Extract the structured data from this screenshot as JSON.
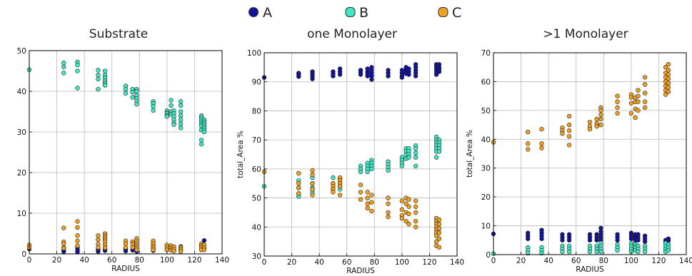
{
  "legend": {
    "entries": [
      {
        "label": "A",
        "color": "#11119a"
      },
      {
        "label": "B",
        "color": "#3ee8c2"
      },
      {
        "label": "C",
        "color": "#f0a020"
      }
    ]
  },
  "chart_data": [
    {
      "type": "scatter",
      "title": "Substrate",
      "xlabel": "RADIUS",
      "ylabel": "",
      "xlim": [
        0,
        140
      ],
      "ylim": [
        0,
        50
      ],
      "xticks": [
        "0",
        "20",
        "40",
        "60",
        "80",
        "100",
        "120",
        "140"
      ],
      "yticks": [
        "0",
        "10",
        "20",
        "30",
        "40",
        "50"
      ],
      "grid": true,
      "series": [
        {
          "name": "A",
          "color": "#11119a",
          "x": [
            0,
            25,
            25,
            25,
            35,
            35,
            35,
            50,
            50,
            55,
            55,
            70,
            70,
            75,
            78,
            78,
            90,
            90,
            100,
            100,
            103,
            105,
            110,
            110,
            125,
            125,
            125,
            127,
            127
          ],
          "y": [
            1.2,
            0.6,
            1.0,
            1.5,
            0.5,
            1.0,
            1.6,
            0.6,
            1.1,
            0.8,
            1.3,
            0.7,
            1.2,
            0.9,
            1.3,
            0.6,
            0.8,
            1.2,
            1.0,
            1.6,
            1.3,
            0.9,
            1.2,
            1.8,
            1.0,
            1.8,
            2.4,
            1.4,
            3.3
          ]
        },
        {
          "name": "B",
          "color": "#3ee8c2",
          "x": [
            0,
            25,
            25,
            25,
            35,
            35,
            35,
            35,
            50,
            50,
            50,
            50,
            55,
            55,
            55,
            55,
            55,
            55,
            70,
            70,
            70,
            75,
            75,
            75,
            78,
            78,
            78,
            78,
            78,
            78,
            90,
            90,
            90,
            90,
            100,
            100,
            100,
            100,
            100,
            103,
            103,
            103,
            103,
            105,
            105,
            105,
            105,
            105,
            105,
            110,
            110,
            110,
            110,
            110,
            110,
            110,
            125,
            125,
            125,
            125,
            125,
            125,
            125,
            125,
            125,
            127,
            127,
            127,
            127,
            127,
            127,
            127
          ],
          "y": [
            45.3,
            47.0,
            46.0,
            44.5,
            47.2,
            46.5,
            45.0,
            40.8,
            45.2,
            44.0,
            43.0,
            40.5,
            45.0,
            44.0,
            43.3,
            42.6,
            42.0,
            41.5,
            41.3,
            40.5,
            39.5,
            40.5,
            39.8,
            38.5,
            40.5,
            40.0,
            39.0,
            38.2,
            37.5,
            36.8,
            37.5,
            37.0,
            36.3,
            35.3,
            35.2,
            34.8,
            34.5,
            34.0,
            33.8,
            37.8,
            36.5,
            35.0,
            34.3,
            35.2,
            34.5,
            33.8,
            33.0,
            32.2,
            31.8,
            37.5,
            36.5,
            35.0,
            34.0,
            33.0,
            32.0,
            31.0,
            34.0,
            33.5,
            33.0,
            32.5,
            32.0,
            31.5,
            30.5,
            28.0,
            27.0,
            33.0,
            32.5,
            32.0,
            31.5,
            31.0,
            30.5,
            30.0
          ]
        },
        {
          "name": "C",
          "color": "#f0a020",
          "x": [
            0,
            0,
            25,
            25,
            25,
            25,
            35,
            35,
            35,
            35,
            35,
            50,
            50,
            50,
            50,
            55,
            55,
            55,
            55,
            55,
            55,
            55,
            70,
            70,
            70,
            75,
            75,
            75,
            78,
            78,
            78,
            78,
            78,
            78,
            90,
            90,
            90,
            90,
            90,
            100,
            100,
            100,
            103,
            103,
            103,
            105,
            105,
            105,
            110,
            110,
            110,
            125,
            125,
            125,
            125,
            127,
            127,
            127
          ],
          "y": [
            2.2,
            1.5,
            6.4,
            3.0,
            2.5,
            1.4,
            8.0,
            6.5,
            4.5,
            3.2,
            2.0,
            4.5,
            3.5,
            2.4,
            1.6,
            5.0,
            4.5,
            4.0,
            3.5,
            3.0,
            2.2,
            1.5,
            3.2,
            2.5,
            1.6,
            3.0,
            2.4,
            1.6,
            3.8,
            3.2,
            2.6,
            2.0,
            1.5,
            1.0,
            3.2,
            2.6,
            2.0,
            1.5,
            1.0,
            2.2,
            1.6,
            1.0,
            2.0,
            1.4,
            0.9,
            1.8,
            1.2,
            0.7,
            1.6,
            1.1,
            0.6,
            2.5,
            2.0,
            1.5,
            1.0,
            2.2,
            1.6,
            1.0
          ]
        }
      ]
    },
    {
      "type": "scatter",
      "title": "one Monolayer",
      "xlabel": "RADIUS",
      "ylabel": "total_Area %",
      "xlim": [
        0,
        140
      ],
      "ylim": [
        30,
        100
      ],
      "xticks": [
        "0",
        "20",
        "40",
        "60",
        "80",
        "100",
        "120",
        "140"
      ],
      "yticks": [
        "30",
        "40",
        "50",
        "60",
        "70",
        "80",
        "90",
        "100"
      ],
      "grid": true,
      "series": [
        {
          "name": "A",
          "color": "#11119a",
          "x": [
            0,
            25,
            25,
            25,
            35,
            35,
            35,
            35,
            50,
            50,
            50,
            55,
            55,
            55,
            70,
            70,
            70,
            75,
            75,
            75,
            75,
            78,
            78,
            78,
            78,
            78,
            90,
            90,
            90,
            100,
            100,
            100,
            100,
            103,
            103,
            103,
            103,
            105,
            105,
            105,
            110,
            110,
            110,
            110,
            110,
            125,
            125,
            125,
            125,
            125,
            127,
            127,
            127,
            127
          ],
          "y": [
            91.5,
            93.0,
            92.5,
            91.8,
            93.5,
            92.8,
            92.0,
            91.0,
            93.5,
            92.8,
            92.0,
            94.5,
            93.5,
            92.5,
            94.0,
            93.3,
            92.5,
            94.5,
            93.5,
            92.8,
            92.0,
            95.0,
            94.0,
            93.0,
            92.0,
            90.8,
            94.0,
            93.0,
            92.0,
            94.0,
            93.0,
            92.0,
            91.5,
            95.0,
            94.3,
            93.5,
            92.8,
            94.5,
            93.5,
            92.5,
            96.0,
            95.0,
            94.0,
            93.0,
            92.0,
            96.0,
            95.3,
            94.5,
            93.5,
            92.5,
            96.0,
            95.0,
            94.3,
            93.5
          ]
        },
        {
          "name": "B",
          "color": "#3ee8c2",
          "x": [
            0,
            25,
            25,
            25,
            25,
            35,
            35,
            35,
            35,
            50,
            50,
            50,
            55,
            55,
            55,
            55,
            70,
            70,
            70,
            75,
            75,
            75,
            75,
            78,
            78,
            78,
            78,
            90,
            90,
            90,
            90,
            100,
            100,
            100,
            100,
            103,
            103,
            103,
            103,
            105,
            105,
            105,
            105,
            110,
            110,
            110,
            110,
            110,
            125,
            125,
            125,
            125,
            125,
            125,
            125,
            127,
            127,
            127,
            127,
            127
          ],
          "y": [
            54.0,
            56.0,
            53.5,
            51.5,
            50.5,
            57.0,
            55.0,
            53.5,
            52.0,
            57.0,
            55.0,
            53.0,
            56.5,
            55.0,
            54.0,
            53.0,
            61.0,
            60.0,
            59.0,
            62.0,
            61.0,
            60.0,
            59.0,
            63.0,
            62.0,
            61.0,
            60.0,
            62.5,
            61.5,
            60.5,
            59.5,
            64.0,
            63.0,
            62.0,
            61.0,
            67.0,
            66.0,
            65.0,
            63.5,
            67.0,
            66.0,
            65.0,
            64.0,
            68.0,
            67.0,
            65.5,
            64.0,
            61.0,
            71.0,
            70.0,
            69.0,
            68.0,
            67.0,
            66.0,
            64.0,
            70.0,
            69.0,
            68.0,
            67.0,
            66.0
          ]
        },
        {
          "name": "C",
          "color": "#f0a020",
          "x": [
            0,
            25,
            25,
            25,
            25,
            35,
            35,
            35,
            35,
            35,
            50,
            50,
            50,
            50,
            55,
            55,
            55,
            55,
            55,
            70,
            70,
            70,
            75,
            75,
            75,
            75,
            78,
            78,
            78,
            90,
            90,
            90,
            90,
            100,
            100,
            100,
            100,
            103,
            103,
            103,
            103,
            105,
            105,
            105,
            105,
            110,
            110,
            110,
            110,
            110,
            125,
            125,
            125,
            125,
            125,
            125,
            125,
            125,
            125,
            127,
            127,
            127,
            127,
            127,
            127
          ],
          "y": [
            59.0,
            58.5,
            55.0,
            53.5,
            51.5,
            59.5,
            58.0,
            55.0,
            53.0,
            51.0,
            55.0,
            54.0,
            53.0,
            52.0,
            57.0,
            56.0,
            55.0,
            54.0,
            51.0,
            54.5,
            52.0,
            49.5,
            52.0,
            50.0,
            48.0,
            46.5,
            51.0,
            48.5,
            45.5,
            50.0,
            48.0,
            45.0,
            43.5,
            49.0,
            46.0,
            44.0,
            43.0,
            50.0,
            48.0,
            45.0,
            42.0,
            49.5,
            47.0,
            44.5,
            41.0,
            49.0,
            47.0,
            45.0,
            42.0,
            40.0,
            43.0,
            42.0,
            41.0,
            40.0,
            39.0,
            38.0,
            37.0,
            35.0,
            33.5,
            42.5,
            41.0,
            39.5,
            38.0,
            36.0,
            33.0
          ]
        }
      ]
    },
    {
      "type": "scatter",
      "title": ">1 Monolayer",
      "xlabel": "RADIUS",
      "ylabel": "total_Area %",
      "xlim": [
        0,
        140
      ],
      "ylim": [
        0,
        70
      ],
      "xticks": [
        "0",
        "20",
        "40",
        "60",
        "80",
        "100",
        "120",
        "140"
      ],
      "yticks": [
        "0",
        "10",
        "20",
        "30",
        "40",
        "50",
        "60",
        "70"
      ],
      "grid": true,
      "series": [
        {
          "name": "A",
          "color": "#11119a",
          "x": [
            0,
            25,
            25,
            25,
            35,
            35,
            35,
            35,
            50,
            50,
            50,
            55,
            55,
            55,
            70,
            70,
            70,
            75,
            75,
            75,
            78,
            78,
            78,
            78,
            78,
            90,
            90,
            90,
            100,
            100,
            100,
            103,
            103,
            103,
            105,
            105,
            105,
            110,
            110,
            110,
            125,
            125,
            125,
            127,
            127
          ],
          "y": [
            7.2,
            7.5,
            6.5,
            5.5,
            8.5,
            7.5,
            6.5,
            5.5,
            7.0,
            6.0,
            5.0,
            7.0,
            6.0,
            5.0,
            7.0,
            6.0,
            5.0,
            7.0,
            6.0,
            5.0,
            9.2,
            8.0,
            7.0,
            6.0,
            5.0,
            7.0,
            6.0,
            5.0,
            7.5,
            6.5,
            5.5,
            7.0,
            6.0,
            5.0,
            7.0,
            6.0,
            5.0,
            6.5,
            5.5,
            4.5,
            5.0,
            4.5,
            4.0,
            5.5,
            4.8
          ]
        },
        {
          "name": "B",
          "color": "#3ee8c2",
          "x": [
            0,
            25,
            25,
            25,
            35,
            35,
            35,
            50,
            50,
            50,
            55,
            55,
            55,
            70,
            70,
            70,
            75,
            75,
            75,
            78,
            78,
            78,
            78,
            90,
            90,
            90,
            100,
            100,
            100,
            100,
            103,
            103,
            103,
            105,
            105,
            105,
            110,
            110,
            110,
            125,
            125,
            125,
            125,
            127,
            127,
            127
          ],
          "y": [
            0.3,
            2.5,
            1.5,
            0.5,
            2.5,
            1.5,
            0.5,
            3.0,
            2.0,
            1.0,
            3.0,
            2.0,
            1.0,
            3.0,
            2.0,
            1.0,
            3.0,
            2.0,
            1.0,
            4.0,
            3.0,
            2.0,
            1.0,
            3.5,
            2.5,
            1.5,
            4.0,
            3.0,
            2.0,
            1.0,
            3.5,
            2.5,
            1.5,
            3.0,
            2.0,
            1.0,
            3.0,
            2.0,
            1.0,
            4.0,
            3.0,
            2.0,
            1.0,
            3.5,
            2.5,
            1.5
          ]
        },
        {
          "name": "C",
          "color": "#f0a020",
          "x": [
            0,
            25,
            25,
            25,
            35,
            35,
            35,
            50,
            50,
            50,
            55,
            55,
            55,
            55,
            55,
            70,
            70,
            70,
            75,
            75,
            75,
            78,
            78,
            78,
            78,
            78,
            90,
            90,
            90,
            90,
            100,
            100,
            100,
            100,
            103,
            103,
            103,
            103,
            105,
            105,
            105,
            105,
            110,
            110,
            110,
            110,
            110,
            125,
            125,
            125,
            125,
            125,
            125,
            125,
            127,
            127,
            127,
            127,
            127,
            127,
            127
          ],
          "y": [
            39.0,
            42.5,
            38.5,
            36.5,
            43.5,
            38.5,
            37.0,
            44.0,
            43.0,
            42.0,
            48.0,
            45.0,
            43.0,
            41.0,
            38.0,
            46.0,
            44.5,
            43.5,
            47.0,
            45.5,
            44.5,
            51.0,
            50.0,
            48.5,
            47.0,
            45.0,
            55.0,
            53.0,
            51.0,
            49.0,
            55.5,
            54.5,
            52.5,
            49.0,
            54.5,
            53.0,
            50.5,
            47.5,
            57.0,
            55.0,
            53.0,
            50.0,
            61.5,
            59.0,
            56.0,
            53.0,
            51.0,
            65.0,
            63.0,
            61.5,
            60.0,
            58.5,
            57.0,
            55.5,
            66.0,
            64.0,
            62.5,
            61.0,
            59.5,
            58.0,
            56.5
          ]
        }
      ]
    }
  ]
}
